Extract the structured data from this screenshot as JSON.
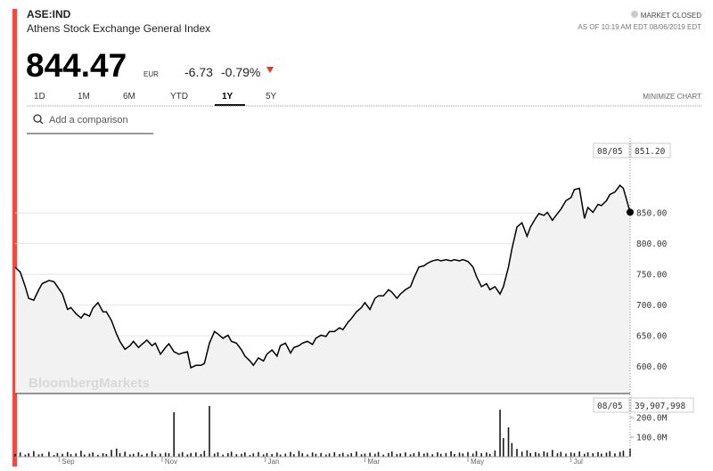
{
  "header": {
    "symbol": "ASE:IND",
    "name": "Athens Stock Exchange General Index",
    "price": "844.47",
    "currency": "EUR",
    "change": "-6.73",
    "change_pct": "-0.79%",
    "status": "MARKET CLOSED",
    "as_of": "AS OF 10:19 AM EDT 08/06/2019 EDT"
  },
  "controls": {
    "ranges": [
      "1D",
      "1M",
      "6M",
      "YTD",
      "1Y",
      "5Y"
    ],
    "active_index": 4,
    "minimize": "MINIMIZE CHART",
    "search_placeholder": "Add a comparison"
  },
  "chart_data": {
    "type": "line",
    "watermark": "BloombergMarkets",
    "hover_date": "08/05",
    "grid": true,
    "x": [
      0,
      3,
      6,
      8,
      11,
      14,
      16,
      20,
      23,
      25,
      28,
      31,
      33,
      36,
      39,
      41,
      44,
      46,
      49,
      52,
      54,
      57,
      60,
      62,
      65,
      68,
      70,
      73,
      75,
      78,
      81,
      83,
      86,
      89,
      91,
      94,
      97,
      99,
      102,
      104,
      107,
      110,
      112,
      115,
      118,
      120,
      123,
      126,
      128,
      131,
      134,
      136,
      139,
      141,
      144,
      147,
      149,
      152,
      155,
      157,
      160,
      163,
      165,
      168,
      170,
      173,
      176,
      178,
      181,
      184,
      186,
      189,
      192,
      194,
      197,
      199,
      202,
      205,
      207,
      210,
      213,
      215,
      218,
      221,
      223,
      226,
      228,
      231,
      234,
      236,
      239,
      242,
      244,
      247,
      250,
      252,
      255,
      258,
      260,
      263,
      265,
      268,
      271,
      273,
      276,
      279,
      281,
      284,
      287,
      289,
      292,
      294,
      297,
      300,
      303,
      305,
      308,
      310,
      313,
      315,
      318,
      321,
      323,
      326,
      329,
      331,
      334,
      337,
      339,
      342,
      345,
      347,
      350,
      352,
      355,
      358,
      360,
      364
    ],
    "xlim": [
      0,
      364
    ],
    "xticks": [
      {
        "value": 26,
        "label": "Sep"
      },
      {
        "value": 87,
        "label": "Nov"
      },
      {
        "value": 148,
        "label": "Jan"
      },
      {
        "value": 207,
        "label": "Mar"
      },
      {
        "value": 268,
        "label": "May"
      },
      {
        "value": 329,
        "label": "Jul"
      }
    ],
    "ylim": [
      556,
      972
    ],
    "yticks": [
      {
        "value": 600,
        "label": "600.00"
      },
      {
        "value": 650,
        "label": "650.00"
      },
      {
        "value": 700,
        "label": "700.00"
      },
      {
        "value": 750,
        "label": "750.00"
      },
      {
        "value": 800,
        "label": "800.00"
      },
      {
        "value": 850,
        "label": "850.00"
      }
    ],
    "y2lim": [
      0,
      318000000
    ],
    "y2ticks": [
      {
        "value": 100000000,
        "label": "100.0M"
      },
      {
        "value": 200000000,
        "label": "200.0M"
      }
    ],
    "series": [
      {
        "color": "#000000",
        "fill": "#f2f2f2",
        "values": [
          761.6,
          754,
          730,
          711,
          708,
          725,
          735,
          740,
          738,
          730,
          718,
          693,
          696,
          686,
          679,
          686,
          682,
          695,
          704,
          689,
          689,
          675,
          653,
          641,
          628,
          634,
          641,
          631,
          636,
          643,
          634,
          638,
          620,
          631,
          637,
          624,
          620,
          622,
          624,
          598,
          602,
          602,
          605,
          638,
          657,
          653,
          646,
          651,
          641,
          638,
          627,
          617,
          609,
          602,
          614,
          609,
          620,
          627,
          617,
          634,
          638,
          622,
          631,
          634,
          638,
          641,
          636,
          646,
          651,
          649,
          657,
          657,
          663,
          660,
          672,
          678,
          689,
          696,
          704,
          693,
          711,
          715,
          715,
          725,
          721,
          711,
          718,
          725,
          730,
          744,
          762,
          764,
          768,
          772,
          774,
          772,
          774,
          772,
          774,
          772,
          774,
          771,
          762,
          747,
          730,
          735,
          725,
          730,
          718,
          730,
          762,
          791,
          827,
          834,
          812,
          827,
          841,
          849,
          846,
          851,
          838,
          849,
          856,
          870,
          875,
          888,
          890,
          841,
          859,
          851,
          864,
          862,
          870,
          880,
          884,
          895,
          890,
          851.2
        ],
        "value_labels": [
          null,
          null,
          null,
          null,
          null,
          null,
          null,
          null,
          null,
          null,
          null,
          null,
          null,
          null,
          null,
          null,
          null,
          null,
          null,
          null,
          null,
          null,
          null,
          null,
          null,
          null,
          null,
          null,
          null,
          null,
          null,
          null,
          null,
          null,
          null,
          null,
          null,
          null,
          null,
          null,
          null,
          null,
          null,
          null,
          null,
          null,
          null,
          null,
          null,
          null,
          null,
          null,
          null,
          null,
          null,
          null,
          null,
          null,
          null,
          null,
          null,
          null,
          null,
          null,
          null,
          null,
          null,
          null,
          null,
          null,
          null,
          null,
          null,
          null,
          null,
          null,
          null,
          null,
          null,
          null,
          null,
          null,
          null,
          null,
          null,
          null,
          null,
          null,
          null,
          null,
          null,
          null,
          null,
          null,
          null,
          null,
          null,
          null,
          null,
          null,
          null,
          null,
          null,
          null,
          null,
          null,
          null,
          null,
          null,
          null,
          null,
          null,
          null,
          null,
          null,
          null,
          null,
          null,
          null,
          null,
          null,
          null,
          null,
          null,
          null,
          null,
          null,
          null,
          null,
          null,
          null,
          null,
          null,
          null,
          null,
          null,
          null,
          "851.20"
        ]
      },
      {
        "color": "#1a1a1a",
        "axis": "y2",
        "values": [
          14000000.0,
          22000000.0,
          11000000.0,
          18000000.0,
          29000000.0,
          12000000.0,
          16000000.0,
          25000000.0,
          9000000.0,
          19000000.0,
          15000000.0,
          24000000.0,
          13000000.0,
          17000000.0,
          31000000.0,
          11000000.0,
          16000000.0,
          22000000.0,
          10000000.0,
          18000000.0,
          14000000.0,
          35000000.0,
          42000000.0,
          19000000.0,
          26000000.0,
          12000000.0,
          15000000.0,
          23000000.0,
          11000000.0,
          17000000.0,
          28000000.0,
          13000000.0,
          16000000.0,
          21000000.0,
          18000000.0,
          227000000.0,
          15000000.0,
          24000000.0,
          12000000.0,
          19000000.0,
          22000000.0,
          14000000.0,
          30000000.0,
          259000000.0,
          16000000.0,
          23000000.0,
          11000000.0,
          18000000.0,
          26000000.0,
          13000000.0,
          15000000.0,
          22000000.0,
          9000000.0,
          17000000.0,
          24000000.0,
          12000000.0,
          19000000.0,
          14000000.0,
          21000000.0,
          11000000.0,
          16000000.0,
          25000000.0,
          13000000.0,
          30000000.0,
          18000000.0,
          12000000.0,
          22000000.0,
          15000000.0,
          19000000.0,
          11000000.0,
          17000000.0,
          23000000.0,
          14000000.0,
          20000000.0,
          12000000.0,
          18000000.0,
          26000000.0,
          13000000.0,
          16000000.0,
          21000000.0,
          15000000.0,
          24000000.0,
          11000000.0,
          19000000.0,
          27000000.0,
          14000000.0,
          17000000.0,
          22000000.0,
          12000000.0,
          18000000.0,
          25000000.0,
          16000000.0,
          20000000.0,
          13000000.0,
          23000000.0,
          15000000.0,
          19000000.0,
          28000000.0,
          14000000.0,
          21000000.0,
          17000000.0,
          24000000.0,
          16000000.0,
          29000000.0,
          18000000.0,
          22000000.0,
          15000000.0,
          32000000.0,
          240000000.0,
          95000000.0,
          150000000.0,
          70000000.0,
          40000000.0,
          26000000.0,
          33000000.0,
          19000000.0,
          24000000.0,
          17000000.0,
          28000000.0,
          21000000.0,
          35000000.0,
          18000000.0,
          25000000.0,
          16000000.0,
          22000000.0,
          19000000.0,
          27000000.0,
          15000000.0,
          23000000.0,
          18000000.0,
          24000000.0,
          16000000.0,
          21000000.0,
          29000000.0,
          17000000.0,
          25000000.0,
          31000000.0,
          39907998
        ],
        "value_labels": [
          null,
          null,
          null,
          null,
          null,
          null,
          null,
          null,
          null,
          null,
          null,
          null,
          null,
          null,
          null,
          null,
          null,
          null,
          null,
          null,
          null,
          null,
          null,
          null,
          null,
          null,
          null,
          null,
          null,
          null,
          null,
          null,
          null,
          null,
          null,
          null,
          null,
          null,
          null,
          null,
          null,
          null,
          null,
          null,
          null,
          null,
          null,
          null,
          null,
          null,
          null,
          null,
          null,
          null,
          null,
          null,
          null,
          null,
          null,
          null,
          null,
          null,
          null,
          null,
          null,
          null,
          null,
          null,
          null,
          null,
          null,
          null,
          null,
          null,
          null,
          null,
          null,
          null,
          null,
          null,
          null,
          null,
          null,
          null,
          null,
          null,
          null,
          null,
          null,
          null,
          null,
          null,
          null,
          null,
          null,
          null,
          null,
          null,
          null,
          null,
          null,
          null,
          null,
          null,
          null,
          null,
          null,
          null,
          null,
          null,
          null,
          null,
          null,
          null,
          null,
          null,
          null,
          null,
          null,
          null,
          null,
          null,
          null,
          null,
          null,
          null,
          null,
          null,
          null,
          null,
          null,
          null,
          null,
          null,
          null,
          null,
          null,
          "39,907,998"
        ]
      }
    ]
  }
}
